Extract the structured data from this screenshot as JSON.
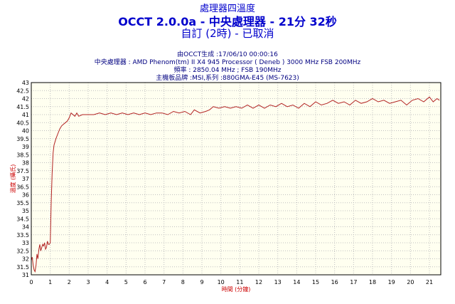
{
  "header": {
    "title_small": "處理器四溫度",
    "title_main": "OCCT 2.0.0a - 中央處理器 - 21分 32秒",
    "title_sub": "自訂 (2時) - 已取消"
  },
  "info_lines": [
    "由OCCT生成 :17/06/10 00:00:16",
    "中央處理器 : AMD Phenom(tm) II X4 945 Processor ( Deneb ) 3000 MHz FSB 200MHz",
    "頻率 : 2850.04 MHz ; FSB 190MHz",
    "主機板品牌 :MSI,系列 :880GMA-E45 (MS-7623)"
  ],
  "colors": {
    "background": "#ffffff",
    "plot_background": "#fffff0",
    "line": "#b22222",
    "grid": "#c0c0c0",
    "title": "#0000cc",
    "axis_label": "#cc0000"
  },
  "chart_data": {
    "type": "line",
    "xlabel": "時間 (分鐘)",
    "ylabel": "溫度 (攝氏)",
    "xlim": [
      0,
      21.6
    ],
    "ylim": [
      31,
      43
    ],
    "x_ticks": [
      0,
      1,
      2,
      3,
      4,
      5,
      6,
      7,
      8,
      9,
      10,
      11,
      12,
      13,
      14,
      15,
      16,
      17,
      18,
      19,
      20,
      21
    ],
    "y_ticks": [
      31,
      31.5,
      32,
      32.5,
      33,
      33.5,
      34,
      34.5,
      35,
      35.5,
      36,
      36.5,
      37,
      37.5,
      38,
      38.5,
      39,
      39.5,
      40,
      40.5,
      41,
      41.5,
      42,
      42.5,
      43
    ],
    "grid": true,
    "series": [
      {
        "values": [
          [
            0,
            31.9
          ],
          [
            0.05,
            32.1
          ],
          [
            0.1,
            31.6
          ],
          [
            0.15,
            31.3
          ],
          [
            0.2,
            31.2
          ],
          [
            0.25,
            31.6
          ],
          [
            0.3,
            32.3
          ],
          [
            0.35,
            32.0
          ],
          [
            0.4,
            32.6
          ],
          [
            0.45,
            32.9
          ],
          [
            0.5,
            32.5
          ],
          [
            0.55,
            32.7
          ],
          [
            0.6,
            32.9
          ],
          [
            0.65,
            32.8
          ],
          [
            0.7,
            33.0
          ],
          [
            0.75,
            32.6
          ],
          [
            0.8,
            32.7
          ],
          [
            0.85,
            33.1
          ],
          [
            0.9,
            32.9
          ],
          [
            0.95,
            32.9
          ],
          [
            1.0,
            33.0
          ],
          [
            1.05,
            35.5
          ],
          [
            1.1,
            37.3
          ],
          [
            1.15,
            38.6
          ],
          [
            1.2,
            39.1
          ],
          [
            1.3,
            39.5
          ],
          [
            1.4,
            39.8
          ],
          [
            1.5,
            40.1
          ],
          [
            1.6,
            40.3
          ],
          [
            1.7,
            40.4
          ],
          [
            1.8,
            40.5
          ],
          [
            1.9,
            40.6
          ],
          [
            2.0,
            40.8
          ],
          [
            2.1,
            41.1
          ],
          [
            2.2,
            41.0
          ],
          [
            2.3,
            40.9
          ],
          [
            2.4,
            41.1
          ],
          [
            2.5,
            40.9
          ],
          [
            2.7,
            41.0
          ],
          [
            3.0,
            41.0
          ],
          [
            3.3,
            41.0
          ],
          [
            3.6,
            41.1
          ],
          [
            3.9,
            41.0
          ],
          [
            4.2,
            41.1
          ],
          [
            4.5,
            41.0
          ],
          [
            4.8,
            41.1
          ],
          [
            5.1,
            41.0
          ],
          [
            5.4,
            41.1
          ],
          [
            5.7,
            41.0
          ],
          [
            6.0,
            41.1
          ],
          [
            6.3,
            41.0
          ],
          [
            6.6,
            41.1
          ],
          [
            6.9,
            41.1
          ],
          [
            7.2,
            41.0
          ],
          [
            7.5,
            41.2
          ],
          [
            7.8,
            41.1
          ],
          [
            8.1,
            41.2
          ],
          [
            8.4,
            41.0
          ],
          [
            8.6,
            41.3
          ],
          [
            8.9,
            41.1
          ],
          [
            9.2,
            41.2
          ],
          [
            9.4,
            41.3
          ],
          [
            9.6,
            41.5
          ],
          [
            9.9,
            41.4
          ],
          [
            10.2,
            41.5
          ],
          [
            10.5,
            41.4
          ],
          [
            10.8,
            41.5
          ],
          [
            11.1,
            41.4
          ],
          [
            11.4,
            41.6
          ],
          [
            11.7,
            41.4
          ],
          [
            12.0,
            41.6
          ],
          [
            12.3,
            41.4
          ],
          [
            12.6,
            41.6
          ],
          [
            12.9,
            41.5
          ],
          [
            13.2,
            41.7
          ],
          [
            13.5,
            41.5
          ],
          [
            13.8,
            41.6
          ],
          [
            14.1,
            41.4
          ],
          [
            14.4,
            41.7
          ],
          [
            14.7,
            41.5
          ],
          [
            15.0,
            41.8
          ],
          [
            15.3,
            41.6
          ],
          [
            15.6,
            41.7
          ],
          [
            15.9,
            41.9
          ],
          [
            16.2,
            41.7
          ],
          [
            16.5,
            41.8
          ],
          [
            16.8,
            41.6
          ],
          [
            17.1,
            41.9
          ],
          [
            17.4,
            41.7
          ],
          [
            17.7,
            41.8
          ],
          [
            18.0,
            42.0
          ],
          [
            18.3,
            41.8
          ],
          [
            18.6,
            41.9
          ],
          [
            18.9,
            41.7
          ],
          [
            19.2,
            41.8
          ],
          [
            19.5,
            41.9
          ],
          [
            19.8,
            41.6
          ],
          [
            20.1,
            41.9
          ],
          [
            20.4,
            42.0
          ],
          [
            20.7,
            41.8
          ],
          [
            21.0,
            42.1
          ],
          [
            21.2,
            41.8
          ],
          [
            21.4,
            42.0
          ],
          [
            21.53,
            41.9
          ]
        ]
      }
    ]
  }
}
